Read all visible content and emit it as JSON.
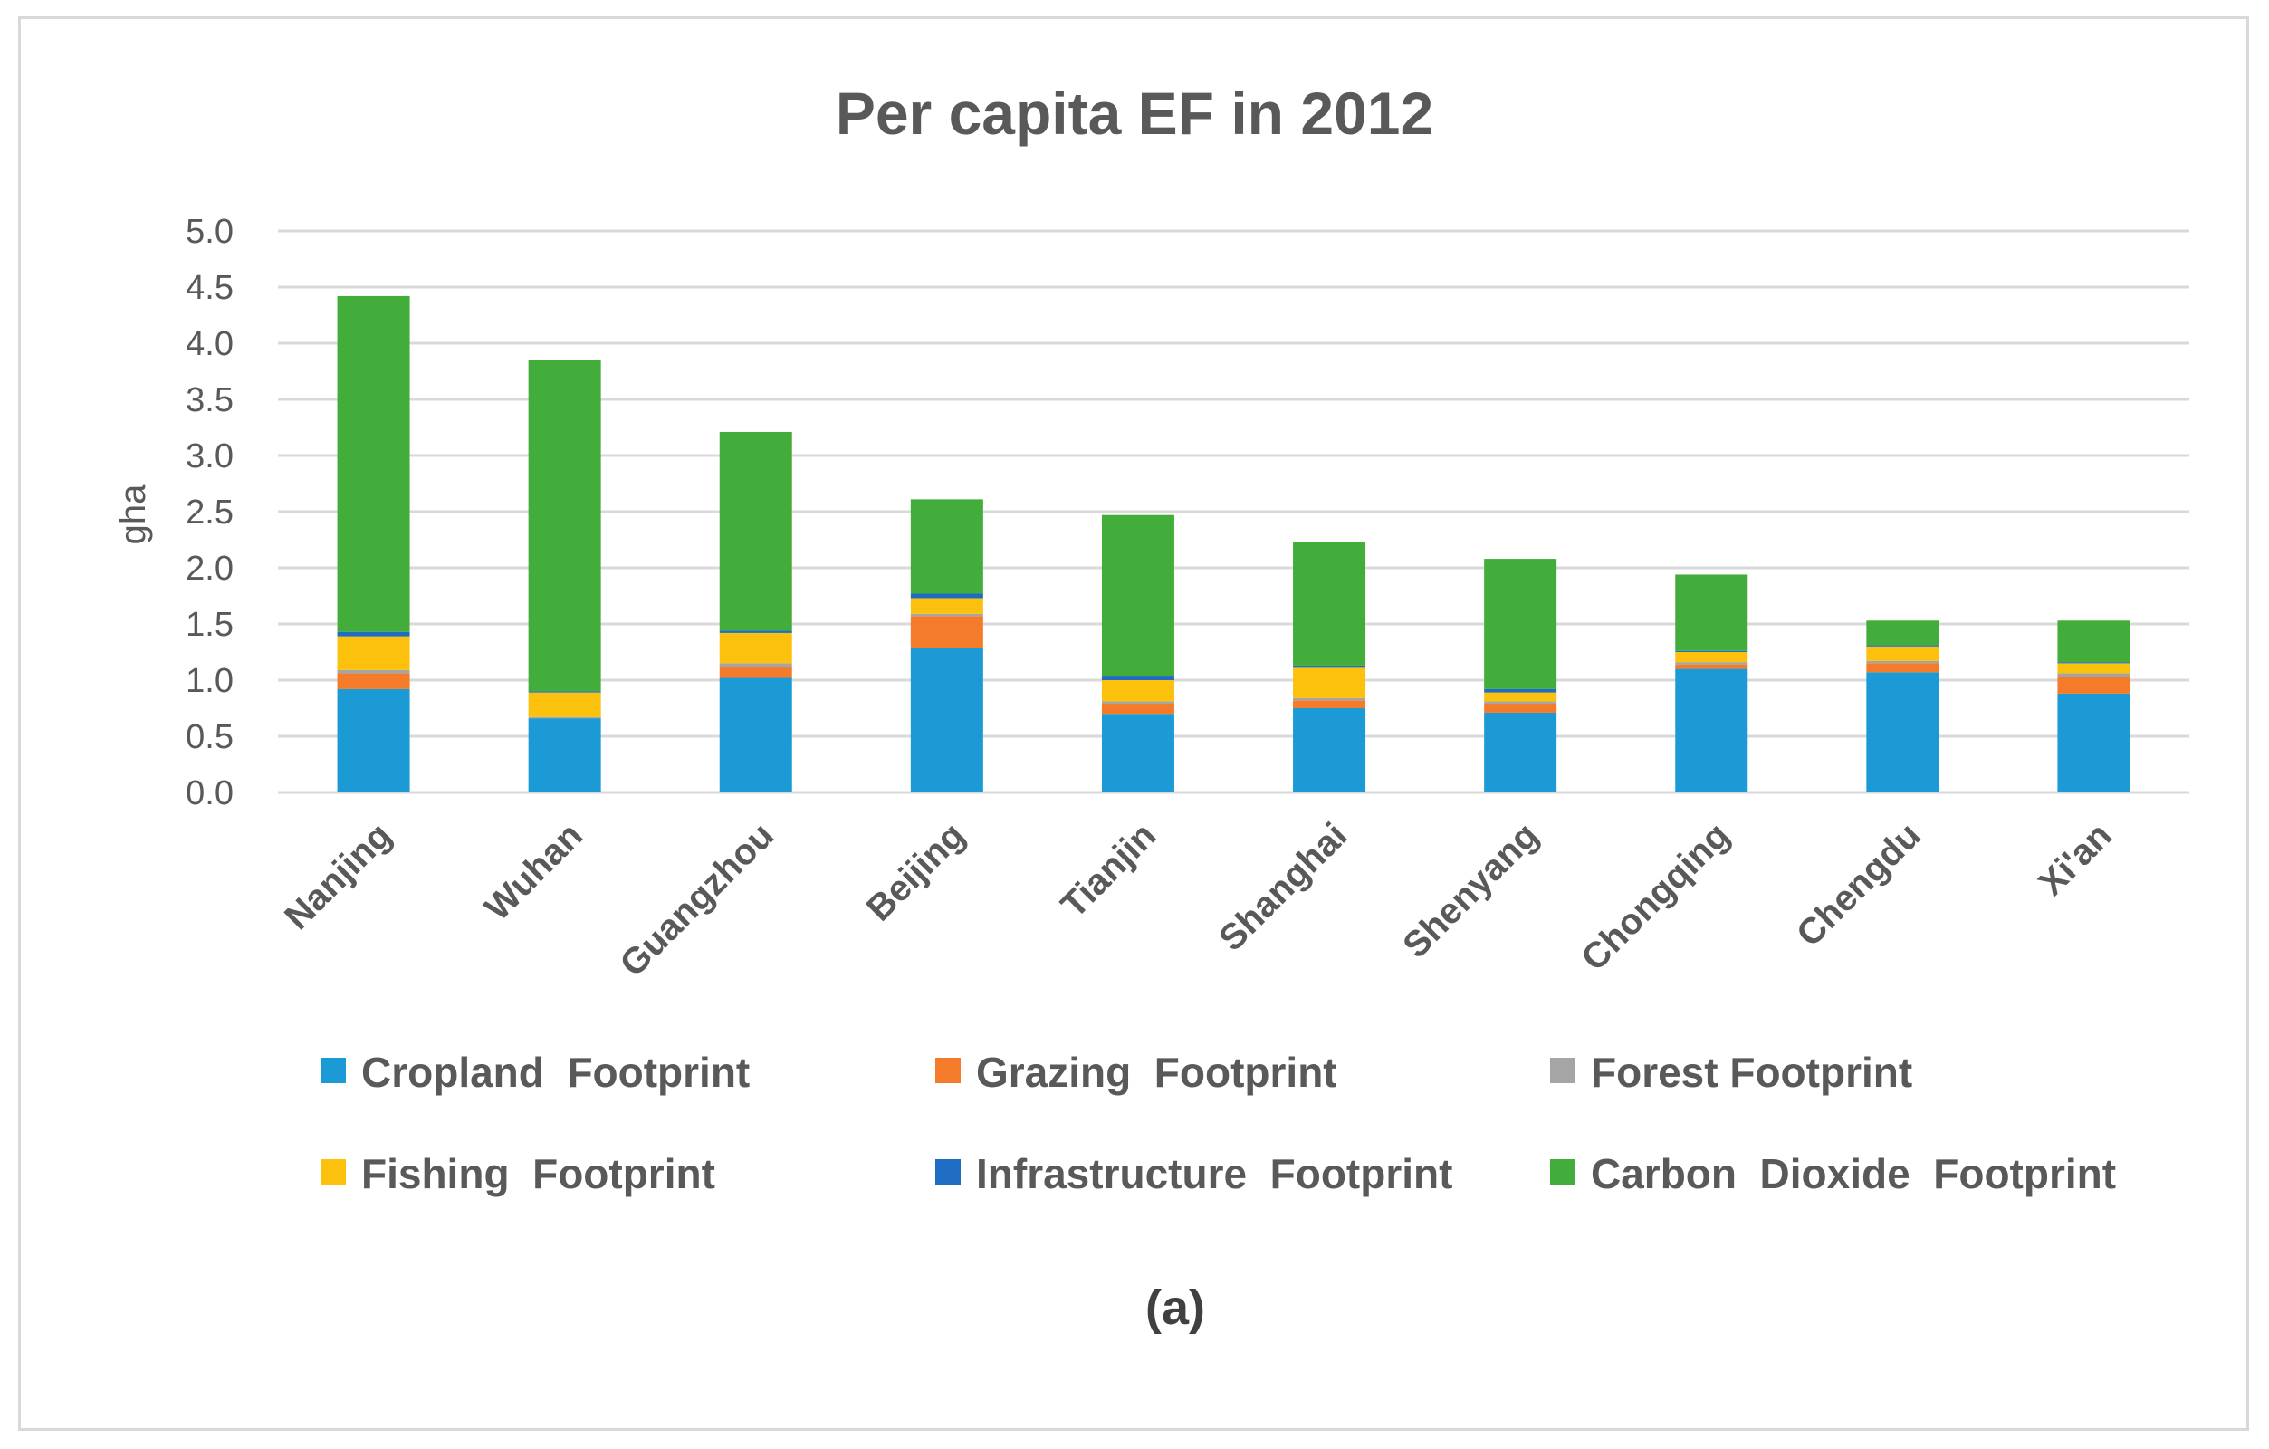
{
  "chart_data": {
    "type": "bar",
    "stacked": true,
    "title": "Per capita EF in 2012",
    "xlabel": "",
    "ylabel": "gha",
    "ylim": [
      0,
      5.0
    ],
    "yticks": [
      "0.0",
      "0.5",
      "1.0",
      "1.5",
      "2.0",
      "2.5",
      "3.0",
      "3.5",
      "4.0",
      "4.5",
      "5.0"
    ],
    "grid": true,
    "legend_position": "bottom",
    "caption": "(a)",
    "categories": [
      "Nanjing",
      "Wuhan",
      "Guangzhou",
      "Beijing",
      "Tianjin",
      "Shanghai",
      "Shenyang",
      "Chongqing",
      "Chengdu",
      "Xi'an"
    ],
    "series": [
      {
        "name": "Cropland  Footprint",
        "color": "#1b9ad6",
        "values": [
          0.92,
          0.66,
          1.02,
          1.29,
          0.7,
          0.75,
          0.71,
          1.1,
          1.07,
          0.88
        ]
      },
      {
        "name": "Grazing  Footprint",
        "color": "#f47b2a",
        "values": [
          0.14,
          0.0,
          0.1,
          0.28,
          0.09,
          0.07,
          0.08,
          0.04,
          0.08,
          0.15
        ]
      },
      {
        "name": "Forest Footprint",
        "color": "#a5a5a5",
        "values": [
          0.03,
          0.01,
          0.03,
          0.02,
          0.02,
          0.02,
          0.02,
          0.02,
          0.02,
          0.03
        ]
      },
      {
        "name": "Fishing  Footprint",
        "color": "#fcc10d",
        "values": [
          0.3,
          0.22,
          0.27,
          0.14,
          0.19,
          0.27,
          0.08,
          0.09,
          0.13,
          0.09
        ]
      },
      {
        "name": "Infrastructure  Footprint",
        "color": "#1f6dc2",
        "values": [
          0.04,
          0.01,
          0.02,
          0.04,
          0.04,
          0.02,
          0.03,
          0.01,
          0.01,
          0.01
        ]
      },
      {
        "name": "Carbon  Dioxide  Footprint",
        "color": "#43ad3c",
        "values": [
          2.99,
          2.95,
          1.77,
          0.84,
          1.43,
          1.1,
          1.16,
          0.68,
          0.22,
          0.37
        ]
      }
    ]
  }
}
